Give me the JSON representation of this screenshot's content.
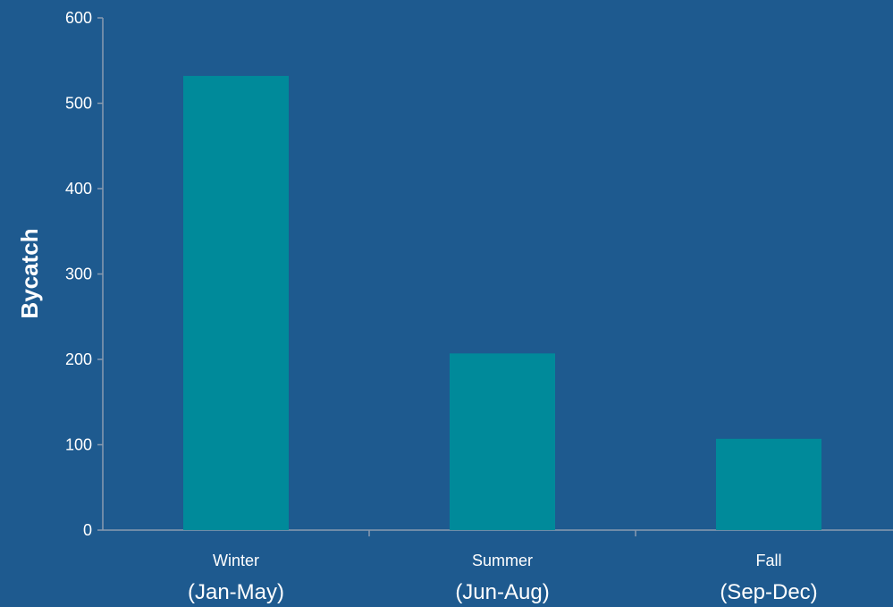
{
  "chart_data": {
    "type": "bar",
    "categories": [
      "Winter",
      "Summer",
      "Fall"
    ],
    "category_sublabels": [
      "(Jan-May)",
      "(Jun-Aug)",
      "(Sep-Dec)"
    ],
    "values": [
      532,
      207,
      107
    ],
    "title": "",
    "xlabel": "",
    "ylabel": "Bycatch",
    "ylim": [
      0,
      600
    ],
    "yticks": [
      0,
      100,
      200,
      300,
      400,
      500,
      600
    ],
    "grid": false,
    "legend": "none",
    "colors": {
      "background": "#1e5a8f",
      "bar": "#008a9a",
      "text": "#ffffff",
      "axis": "#8a9bb0"
    }
  }
}
